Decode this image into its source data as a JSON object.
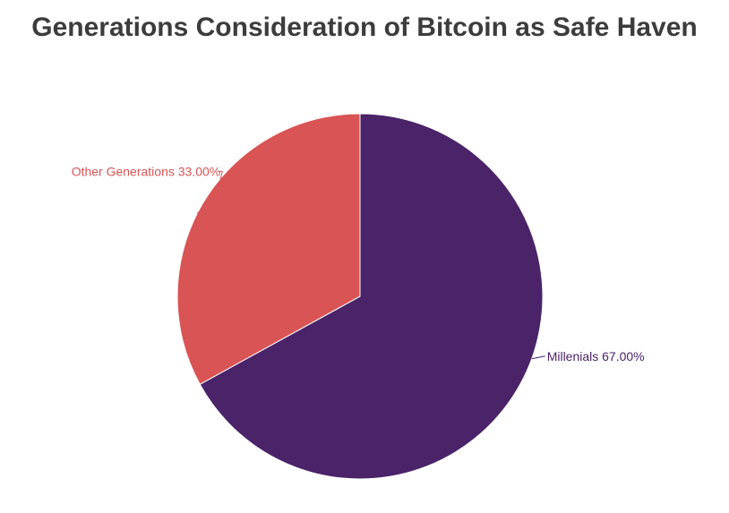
{
  "chart_data": {
    "type": "pie",
    "title": "Generations Consideration of Bitcoin as Safe Haven",
    "slices": [
      {
        "label": "Millenials",
        "value": 67.0,
        "display": "Millenials 67.00%",
        "color": "#4a2369"
      },
      {
        "label": "Other Generations",
        "value": 33.0,
        "display": "Other Generations 33.00%",
        "color": "#d95454"
      }
    ],
    "start_angle": "12 o'clock",
    "direction": "clockwise",
    "legend": "none"
  }
}
